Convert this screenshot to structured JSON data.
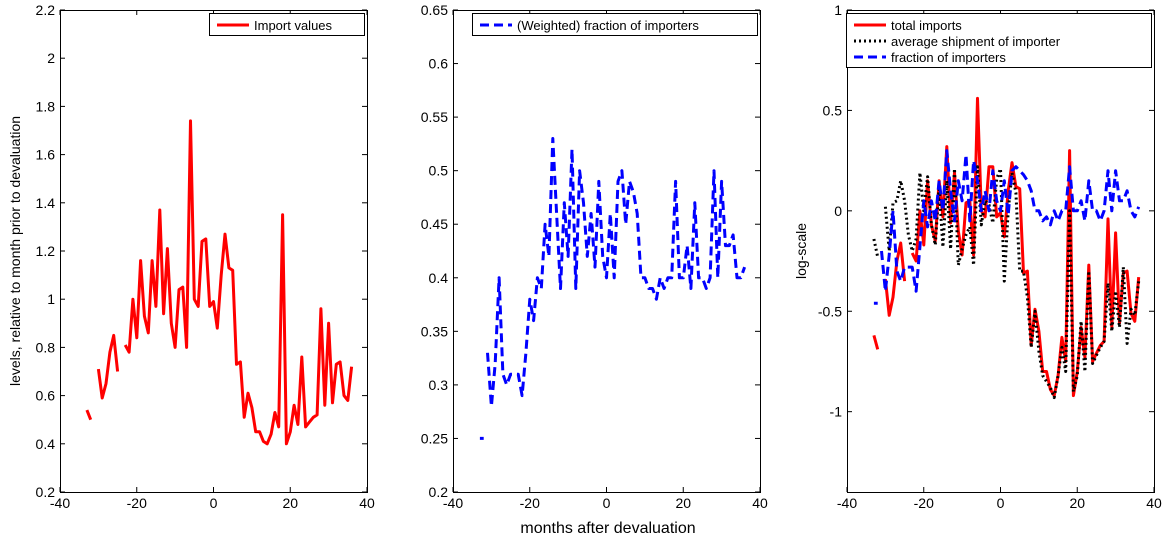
{
  "chart_data": [
    {
      "type": "line",
      "xlim": [
        -40,
        40
      ],
      "ylim": [
        0.2,
        2.2
      ],
      "xticks": [
        -40,
        -20,
        0,
        20,
        40
      ],
      "xtick_labels": [
        "-40",
        "-20",
        "0",
        "20",
        "40"
      ],
      "yticks": [
        0.2,
        0.4,
        0.6,
        0.8,
        1,
        1.2,
        1.4,
        1.6,
        1.8,
        2,
        2.2
      ],
      "ytick_labels": [
        "0.2",
        "0.4",
        "0.6",
        "0.8",
        "1",
        "1.2",
        "1.4",
        "1.6",
        "1.8",
        "2",
        "2.2"
      ],
      "xlabel": "",
      "ylabel": "levels, relative to month prior to devaluation",
      "grid": false,
      "legend": "top-right",
      "series": [
        {
          "name": "Import values",
          "color": "#ff0000",
          "style": "solid",
          "x": [
            -33,
            -32,
            null,
            -30,
            -29,
            -28,
            -27,
            -26,
            -25,
            null,
            -23,
            -22,
            -21,
            -20,
            -19,
            -18,
            -17,
            -16,
            -15,
            -14,
            -13,
            -12,
            -11,
            -10,
            -9,
            -8,
            -7,
            -6,
            -5,
            -4,
            -3,
            -2,
            -1,
            0,
            1,
            2,
            3,
            4,
            5,
            6,
            7,
            8,
            9,
            10,
            11,
            12,
            13,
            14,
            15,
            16,
            17,
            18,
            19,
            20,
            21,
            22,
            23,
            24,
            25,
            26,
            27,
            28,
            29,
            30,
            31,
            32,
            33,
            34,
            35,
            36
          ],
          "y": [
            0.54,
            0.5,
            null,
            0.71,
            0.59,
            0.65,
            0.78,
            0.85,
            0.7,
            null,
            0.81,
            0.78,
            1.0,
            0.84,
            1.16,
            0.93,
            0.86,
            1.16,
            0.97,
            1.37,
            0.94,
            1.21,
            0.9,
            0.8,
            1.04,
            1.05,
            0.8,
            1.74,
            1.0,
            0.97,
            1.24,
            1.25,
            0.97,
            0.99,
            0.88,
            1.1,
            1.27,
            1.13,
            1.12,
            0.73,
            0.74,
            0.51,
            0.61,
            0.55,
            0.45,
            0.45,
            0.41,
            0.4,
            0.44,
            0.53,
            0.47,
            1.35,
            0.4,
            0.45,
            0.56,
            0.48,
            0.76,
            0.47,
            0.49,
            0.51,
            0.52,
            0.96,
            0.56,
            0.9,
            0.57,
            0.73,
            0.74,
            0.6,
            0.58,
            0.72
          ]
        }
      ]
    },
    {
      "type": "line",
      "xlim": [
        -40,
        40
      ],
      "ylim": [
        0.2,
        0.65
      ],
      "xticks": [
        -40,
        -20,
        0,
        20,
        40
      ],
      "xtick_labels": [
        "-40",
        "-20",
        "0",
        "20",
        "40"
      ],
      "yticks": [
        0.2,
        0.25,
        0.3,
        0.35,
        0.4,
        0.45,
        0.5,
        0.55,
        0.6,
        0.65
      ],
      "ytick_labels": [
        "0.2",
        "0.25",
        "0.3",
        "0.35",
        "0.4",
        "0.45",
        "0.5",
        "0.55",
        "0.6",
        "0.65"
      ],
      "xlabel": "months after devaluation",
      "ylabel": "",
      "grid": false,
      "legend": "top-right",
      "series": [
        {
          "name": "(Weighted) fraction of importers",
          "color": "#0000ff",
          "style": "dashed",
          "x": [
            -33,
            -32,
            null,
            -31,
            -30,
            -29,
            -28,
            -27,
            -26,
            -25,
            -24,
            -23,
            -22,
            -21,
            -20,
            -19,
            -18,
            -17,
            -16,
            -15,
            -14,
            -13,
            -12,
            -11,
            -10,
            -9,
            -8,
            -7,
            -6,
            -5,
            -4,
            -3,
            -2,
            -1,
            0,
            1,
            2,
            3,
            4,
            5,
            6,
            7,
            8,
            9,
            10,
            11,
            12,
            13,
            14,
            15,
            16,
            17,
            18,
            19,
            20,
            21,
            22,
            23,
            24,
            25,
            26,
            27,
            28,
            29,
            30,
            31,
            32,
            33,
            34,
            35,
            36
          ],
          "y": [
            0.25,
            0.25,
            null,
            0.33,
            0.28,
            0.32,
            0.4,
            0.31,
            0.3,
            0.31,
            0.31,
            0.31,
            0.29,
            0.33,
            0.38,
            0.36,
            0.4,
            0.39,
            0.45,
            0.42,
            0.53,
            0.46,
            0.39,
            0.47,
            0.42,
            0.52,
            0.39,
            0.5,
            0.47,
            0.42,
            0.46,
            0.41,
            0.49,
            0.42,
            0.4,
            0.46,
            0.4,
            0.49,
            0.5,
            0.45,
            0.49,
            0.48,
            0.46,
            0.4,
            0.4,
            0.39,
            0.39,
            0.38,
            0.4,
            0.39,
            0.4,
            0.4,
            0.49,
            0.4,
            0.4,
            0.43,
            0.39,
            0.47,
            0.4,
            0.4,
            0.39,
            0.4,
            0.5,
            0.4,
            0.49,
            0.43,
            0.43,
            0.44,
            0.4,
            0.4,
            0.41
          ]
        }
      ]
    },
    {
      "type": "line",
      "xlim": [
        -40,
        40
      ],
      "ylim": [
        -1.4,
        1
      ],
      "xticks": [
        -40,
        -20,
        0,
        20,
        40
      ],
      "xtick_labels": [
        "-40",
        "-20",
        "0",
        "20",
        "40"
      ],
      "yticks": [
        -1,
        -0.5,
        0,
        0.5,
        1
      ],
      "ytick_labels": [
        "-1",
        "-0.5",
        "0",
        "0.5",
        "1"
      ],
      "xlabel": "",
      "ylabel": "log-scale",
      "grid": false,
      "legend": "top-right",
      "series": [
        {
          "name": "total imports",
          "color": "#ff0000",
          "style": "solid",
          "x": [
            -33,
            -32,
            null,
            -30,
            -29,
            -28,
            -27,
            -26,
            -25,
            null,
            -23,
            -22,
            -21,
            -20,
            -19,
            -18,
            -17,
            -16,
            -15,
            -14,
            -13,
            -12,
            -11,
            -10,
            -9,
            -8,
            -7,
            -6,
            -5,
            -4,
            -3,
            -2,
            -1,
            0,
            1,
            2,
            3,
            4,
            5,
            6,
            7,
            8,
            9,
            10,
            11,
            12,
            13,
            14,
            15,
            16,
            17,
            18,
            19,
            20,
            21,
            22,
            23,
            24,
            25,
            26,
            27,
            28,
            29,
            30,
            31,
            32,
            33,
            34,
            35,
            36
          ],
          "y": [
            -0.62,
            -0.69,
            null,
            -0.34,
            -0.52,
            -0.43,
            -0.25,
            -0.16,
            -0.35,
            null,
            -0.21,
            -0.25,
            0.0,
            -0.17,
            0.15,
            -0.07,
            -0.15,
            0.15,
            -0.03,
            0.32,
            -0.06,
            0.19,
            -0.1,
            -0.22,
            0.04,
            0.05,
            -0.22,
            0.56,
            0.0,
            -0.03,
            0.22,
            0.22,
            -0.03,
            -0.01,
            -0.13,
            0.1,
            0.24,
            0.12,
            0.11,
            -0.31,
            -0.3,
            -0.67,
            -0.49,
            -0.6,
            -0.8,
            -0.8,
            -0.89,
            -0.92,
            -0.82,
            -0.63,
            -0.75,
            0.3,
            -0.92,
            -0.8,
            -0.58,
            -0.73,
            -0.27,
            -0.75,
            -0.71,
            -0.67,
            -0.65,
            -0.04,
            -0.58,
            -0.11,
            -0.56,
            -0.31,
            -0.3,
            -0.51,
            -0.55,
            -0.33
          ]
        },
        {
          "name": "average shipment of importer",
          "color": "#000000",
          "style": "dotted",
          "x": [
            -33,
            -32,
            null,
            -30,
            -29,
            -28,
            -27,
            -26,
            -25,
            -24,
            -23,
            -22,
            -21,
            -20,
            -19,
            -18,
            -17,
            -16,
            -15,
            -14,
            -13,
            -12,
            -11,
            -10,
            -9,
            -8,
            -7,
            -6,
            -5,
            -4,
            -3,
            -2,
            -1,
            0,
            1,
            2,
            3,
            4,
            5,
            6,
            7,
            8,
            9,
            10,
            11,
            12,
            13,
            14,
            15,
            16,
            17,
            18,
            19,
            20,
            21,
            22,
            23,
            24,
            25,
            26,
            27,
            28,
            29,
            30,
            31,
            32,
            33,
            34,
            35,
            36
          ],
          "y": [
            -0.14,
            -0.23,
            null,
            0.02,
            -0.2,
            0.04,
            0.05,
            0.15,
            0.05,
            -0.12,
            -0.2,
            -0.14,
            0.19,
            0.0,
            0.17,
            -0.07,
            -0.17,
            0.12,
            -0.18,
            0.15,
            -0.19,
            0.21,
            -0.27,
            -0.19,
            -0.12,
            -0.08,
            -0.27,
            0.22,
            -0.07,
            0.05,
            0.03,
            -0.06,
            0.16,
            0.21,
            -0.35,
            0.0,
            0.19,
            0.09,
            -0.3,
            -0.3,
            -0.43,
            -0.68,
            -0.5,
            -0.7,
            -0.82,
            -0.85,
            -0.88,
            -0.93,
            -0.82,
            -0.68,
            -0.8,
            0.0,
            -0.9,
            -0.82,
            -0.55,
            -0.8,
            -0.3,
            -0.76,
            -0.72,
            -0.68,
            -0.65,
            -0.36,
            -0.6,
            -0.4,
            -0.58,
            -0.28,
            -0.66,
            -0.49,
            -0.52,
            -0.35
          ]
        },
        {
          "name": "fraction of importers",
          "color": "#0000ff",
          "style": "dashed",
          "x": [
            -33,
            -32,
            null,
            -31,
            -30,
            -29,
            -28,
            -27,
            -26,
            -25,
            -24,
            -23,
            -22,
            -21,
            -20,
            -19,
            -18,
            -17,
            -16,
            -15,
            -14,
            -13,
            -12,
            -11,
            -10,
            -9,
            -8,
            -7,
            -6,
            -5,
            -4,
            -3,
            -2,
            -1,
            0,
            1,
            2,
            3,
            4,
            5,
            6,
            7,
            8,
            9,
            10,
            11,
            12,
            13,
            14,
            15,
            16,
            17,
            18,
            19,
            20,
            21,
            22,
            23,
            24,
            25,
            26,
            27,
            28,
            29,
            30,
            31,
            32,
            33,
            34,
            35,
            36
          ],
          "y": [
            -0.46,
            -0.46,
            null,
            -0.2,
            -0.4,
            -0.22,
            0.0,
            -0.3,
            -0.35,
            -0.28,
            -0.28,
            -0.28,
            -0.4,
            -0.18,
            0.05,
            -0.08,
            0.05,
            -0.05,
            0.15,
            0.0,
            0.3,
            0.1,
            -0.05,
            0.15,
            0.05,
            0.28,
            -0.05,
            0.25,
            0.15,
            0.0,
            0.1,
            0.0,
            0.2,
            0.05,
            0.0,
            0.15,
            -0.02,
            0.2,
            0.22,
            0.2,
            0.18,
            0.15,
            0.1,
            0.0,
            0.0,
            -0.05,
            -0.03,
            -0.07,
            0.0,
            -0.05,
            0.0,
            0.0,
            0.22,
            0.0,
            0.0,
            0.05,
            -0.05,
            0.15,
            0.0,
            0.0,
            -0.05,
            0.0,
            0.2,
            0.0,
            0.2,
            0.05,
            0.05,
            0.1,
            0.0,
            -0.03,
            0.02
          ]
        }
      ]
    }
  ]
}
